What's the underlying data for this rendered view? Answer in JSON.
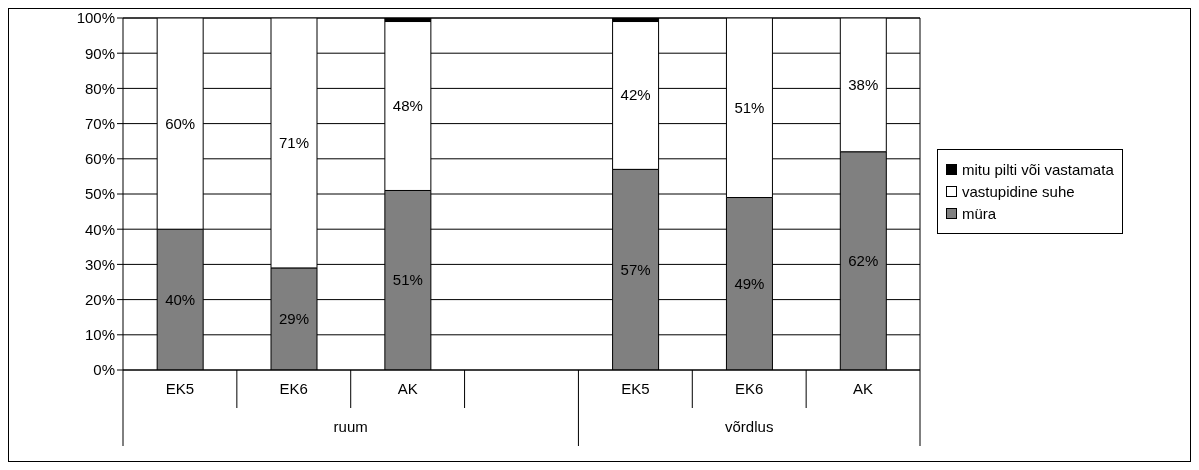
{
  "chart_data": {
    "type": "bar",
    "stacked": true,
    "categories": [
      "EK5",
      "EK6",
      "AK",
      null,
      "EK5",
      "EK6",
      "AK"
    ],
    "series": [
      {
        "name": "müra",
        "color": "#808080",
        "values": [
          40,
          29,
          51,
          null,
          57,
          49,
          62
        ],
        "value_labels": [
          "40%",
          "29%",
          "51%",
          null,
          "57%",
          "49%",
          "62%"
        ]
      },
      {
        "name": "vastupidine suhe",
        "color": "#ffffff",
        "values": [
          60,
          71,
          48,
          null,
          42,
          51,
          38
        ],
        "value_labels": [
          "60%",
          "71%",
          "48%",
          null,
          "42%",
          "51%",
          "38%"
        ]
      },
      {
        "name": "mitu pilti või vastamata",
        "color": "#000000",
        "values": [
          0,
          0,
          1,
          null,
          1,
          0,
          0
        ]
      }
    ],
    "ylim": [
      0,
      100
    ],
    "yticks": [
      {
        "value": 0,
        "label": "0%"
      },
      {
        "value": 10,
        "label": "10%"
      },
      {
        "value": 20,
        "label": "20%"
      },
      {
        "value": 30,
        "label": "30%"
      },
      {
        "value": 40,
        "label": "40%"
      },
      {
        "value": 50,
        "label": "50%"
      },
      {
        "value": 60,
        "label": "60%"
      },
      {
        "value": 70,
        "label": "70%"
      },
      {
        "value": 80,
        "label": "80%"
      },
      {
        "value": 90,
        "label": "90%"
      },
      {
        "value": 100,
        "label": "100%"
      }
    ],
    "grid": "y",
    "legend": "right",
    "annotations": [
      "ruum",
      "võrdlus"
    ]
  }
}
